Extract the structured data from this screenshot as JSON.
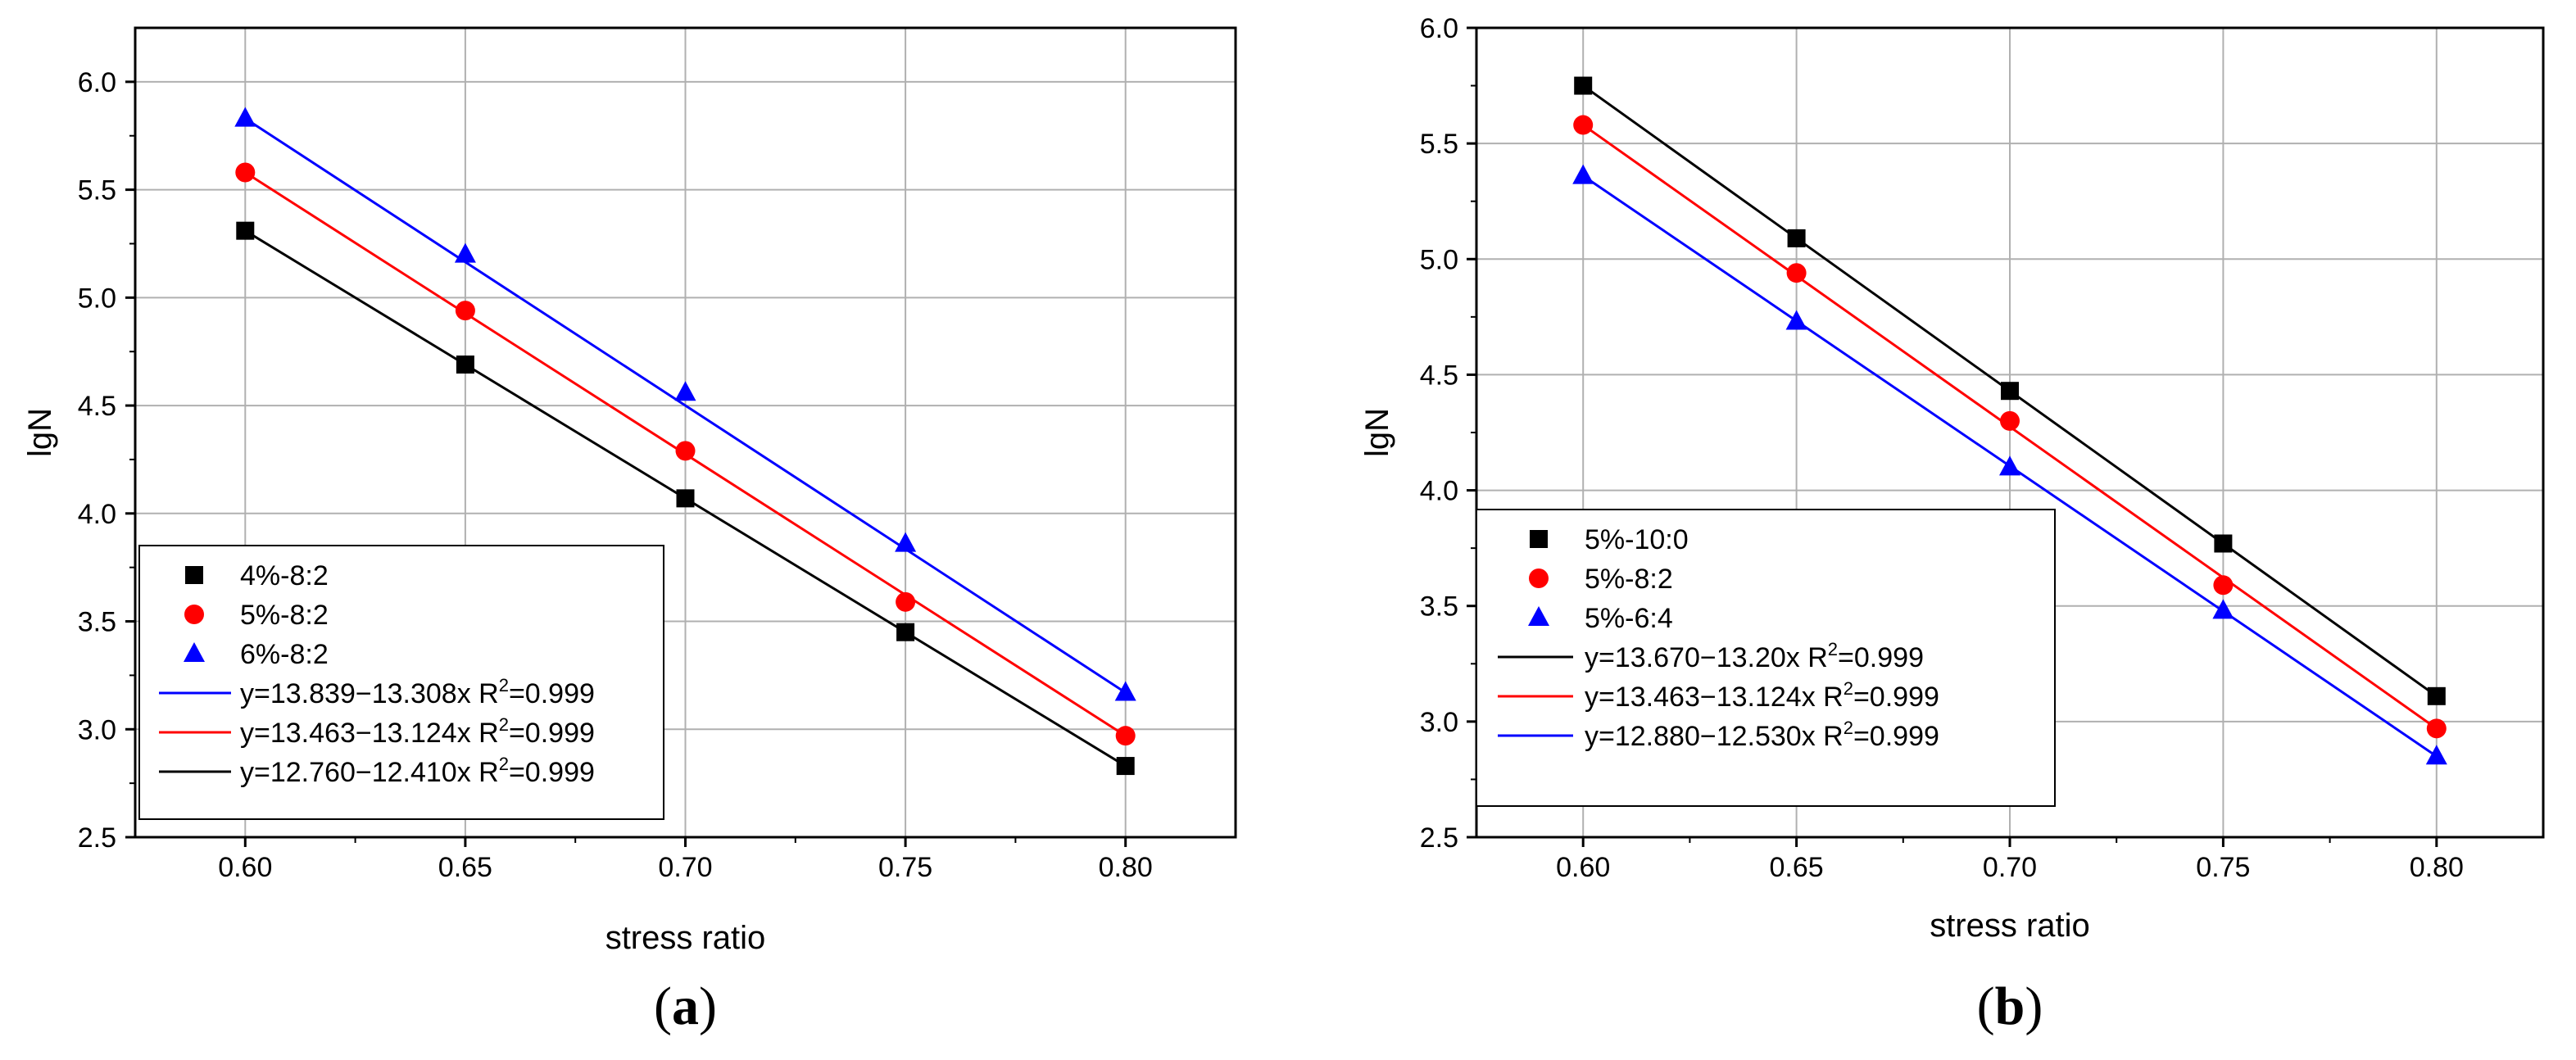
{
  "colors": {
    "black": "#000000",
    "red": "#ff0000",
    "blue": "#0000ff",
    "grid": "#b0b0b0"
  },
  "chart_data": [
    {
      "type": "scatter",
      "panel_label": {
        "open": "(",
        "letter": "a",
        "close": ")"
      },
      "xlabel": "stress ratio",
      "ylabel": "lgN",
      "xlim": [
        0.575,
        0.825
      ],
      "ylim": [
        2.5,
        6.25
      ],
      "xticks": [
        0.6,
        0.65,
        0.7,
        0.75,
        0.8
      ],
      "yticks": [
        2.5,
        3.0,
        3.5,
        4.0,
        4.5,
        5.0,
        5.5,
        6.0
      ],
      "xtick_labels": [
        "0.60",
        "0.65",
        "0.70",
        "0.75",
        "0.80"
      ],
      "ytick_labels": [
        "2.5",
        "3.0",
        "3.5",
        "4.0",
        "4.5",
        "5.0",
        "5.5",
        "6.0"
      ],
      "grid": true,
      "legend_position": "bottom-left",
      "series": [
        {
          "name": "4%-8:2",
          "marker": "square",
          "color": "#000000",
          "x": [
            0.6,
            0.65,
            0.7,
            0.75,
            0.8
          ],
          "y": [
            5.31,
            4.69,
            4.07,
            3.45,
            2.83
          ]
        },
        {
          "name": "5%-8:2",
          "marker": "circle",
          "color": "#ff0000",
          "x": [
            0.6,
            0.65,
            0.7,
            0.75,
            0.8
          ],
          "y": [
            5.58,
            4.94,
            4.29,
            3.59,
            2.97
          ]
        },
        {
          "name": "6%-8:2",
          "marker": "triangle",
          "color": "#0000ff",
          "x": [
            0.6,
            0.65,
            0.7,
            0.75,
            0.8
          ],
          "y": [
            5.83,
            5.2,
            4.56,
            3.86,
            3.17
          ]
        }
      ],
      "fits": [
        {
          "label_main": "y=13.839−13.308x R",
          "label_sup": "2",
          "label_tail": "=0.999",
          "color": "#0000ff",
          "x": [
            0.6,
            0.8
          ],
          "y": [
            5.83,
            3.17
          ]
        },
        {
          "label_main": "y=13.463−13.124x R",
          "label_sup": "2",
          "label_tail": "=0.999",
          "color": "#ff0000",
          "x": [
            0.6,
            0.8
          ],
          "y": [
            5.58,
            2.97
          ]
        },
        {
          "label_main": "y=12.760−12.410x R",
          "label_sup": "2",
          "label_tail": "=0.999",
          "color": "#000000",
          "x": [
            0.6,
            0.8
          ],
          "y": [
            5.31,
            2.83
          ]
        }
      ]
    },
    {
      "type": "scatter",
      "panel_label": {
        "open": "(",
        "letter": "b",
        "close": ")"
      },
      "xlabel": "stress ratio",
      "ylabel": "lgN",
      "xlim": [
        0.575,
        0.825
      ],
      "ylim": [
        2.5,
        6.0
      ],
      "xticks": [
        0.6,
        0.65,
        0.7,
        0.75,
        0.8
      ],
      "yticks": [
        2.5,
        3.0,
        3.5,
        4.0,
        4.5,
        5.0,
        5.5,
        6.0
      ],
      "xtick_labels": [
        "0.60",
        "0.65",
        "0.70",
        "0.75",
        "0.80"
      ],
      "ytick_labels": [
        "2.5",
        "3.0",
        "3.5",
        "4.0",
        "4.5",
        "5.0",
        "5.5",
        "6.0"
      ],
      "grid": true,
      "legend_position": "bottom-left",
      "series": [
        {
          "name": "5%-10:0",
          "marker": "square",
          "color": "#000000",
          "x": [
            0.6,
            0.65,
            0.7,
            0.75,
            0.8
          ],
          "y": [
            5.75,
            5.09,
            4.43,
            3.77,
            3.11
          ]
        },
        {
          "name": "5%-8:2",
          "marker": "circle",
          "color": "#ff0000",
          "x": [
            0.6,
            0.65,
            0.7,
            0.75,
            0.8
          ],
          "y": [
            5.58,
            4.94,
            4.3,
            3.59,
            2.97
          ]
        },
        {
          "name": "5%-6:4",
          "marker": "triangle",
          "color": "#0000ff",
          "x": [
            0.6,
            0.65,
            0.7,
            0.75,
            0.8
          ],
          "y": [
            5.36,
            4.73,
            4.1,
            3.48,
            2.85
          ]
        }
      ],
      "fits": [
        {
          "label_main": "y=13.670−13.20x R",
          "label_sup": "2",
          "label_tail": "=0.999",
          "color": "#000000",
          "x": [
            0.6,
            0.8
          ],
          "y": [
            5.75,
            3.11
          ]
        },
        {
          "label_main": "y=13.463−13.124x R",
          "label_sup": "2",
          "label_tail": "=0.999",
          "color": "#ff0000",
          "x": [
            0.6,
            0.8
          ],
          "y": [
            5.58,
            2.97
          ]
        },
        {
          "label_main": "y=12.880−12.530x R",
          "label_sup": "2",
          "label_tail": "=0.999",
          "color": "#0000ff",
          "x": [
            0.6,
            0.8
          ],
          "y": [
            5.36,
            2.85
          ]
        }
      ]
    }
  ]
}
